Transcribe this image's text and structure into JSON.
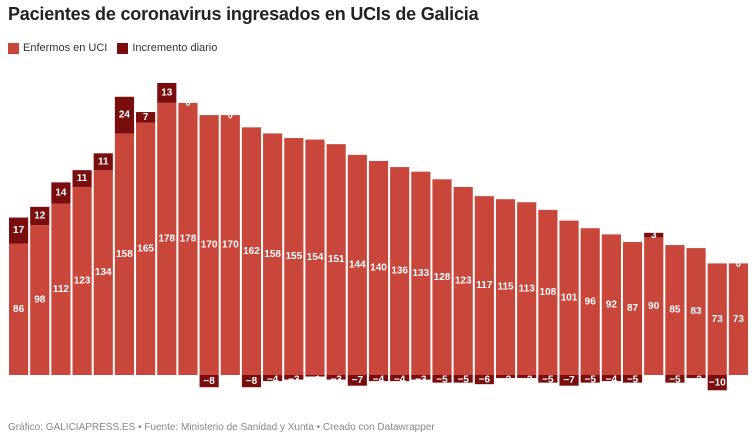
{
  "chart_data": {
    "type": "bar",
    "stacked": true,
    "title": "Pacientes de coronavirus ingresados en UCIs de Galicia",
    "footer": "Gráfico: GALICIAPRESS.ES • Fuente: Ministerio de Sanidad y Xunta • Creado con Datawrapper",
    "categories": [
      null,
      null,
      null,
      null,
      null,
      null,
      null,
      null,
      null,
      null,
      null,
      null,
      null,
      null,
      null,
      null,
      null,
      null,
      null,
      null,
      null,
      null,
      null,
      null,
      null,
      null,
      null,
      null,
      null,
      null,
      null,
      null,
      null,
      null,
      null
    ],
    "series": [
      {
        "name": "Enfermos en UCI",
        "color": "#c8473a",
        "values": [
          86,
          98,
          112,
          123,
          134,
          158,
          165,
          178,
          178,
          170,
          170,
          162,
          158,
          155,
          154,
          151,
          144,
          140,
          136,
          133,
          128,
          123,
          117,
          115,
          113,
          108,
          101,
          96,
          92,
          87,
          90,
          85,
          83,
          73,
          73
        ]
      },
      {
        "name": "Incremento diario",
        "color": "#7a0e0e",
        "values": [
          17,
          12,
          14,
          11,
          11,
          24,
          7,
          13,
          0,
          -8,
          0,
          -8,
          -4,
          -3,
          -1,
          -3,
          -7,
          -4,
          -4,
          -3,
          -5,
          -5,
          -6,
          -2,
          -2,
          -5,
          -7,
          -5,
          -4,
          -5,
          3,
          -5,
          -2,
          -10,
          0
        ],
        "value_labels": [
          "17",
          "12",
          "14",
          "11",
          "11",
          "24",
          "7",
          "13",
          "0",
          "−8",
          "0",
          "−8",
          "−4",
          "−3",
          "−1",
          "−3",
          "−7",
          "−4",
          "−4",
          "−3",
          "−5",
          "−5",
          "−6",
          "−2",
          "−2",
          "−5",
          "−7",
          "−5",
          "−4",
          "−5",
          "3",
          "−5",
          "−2",
          "−10",
          "0"
        ]
      }
    ]
  }
}
